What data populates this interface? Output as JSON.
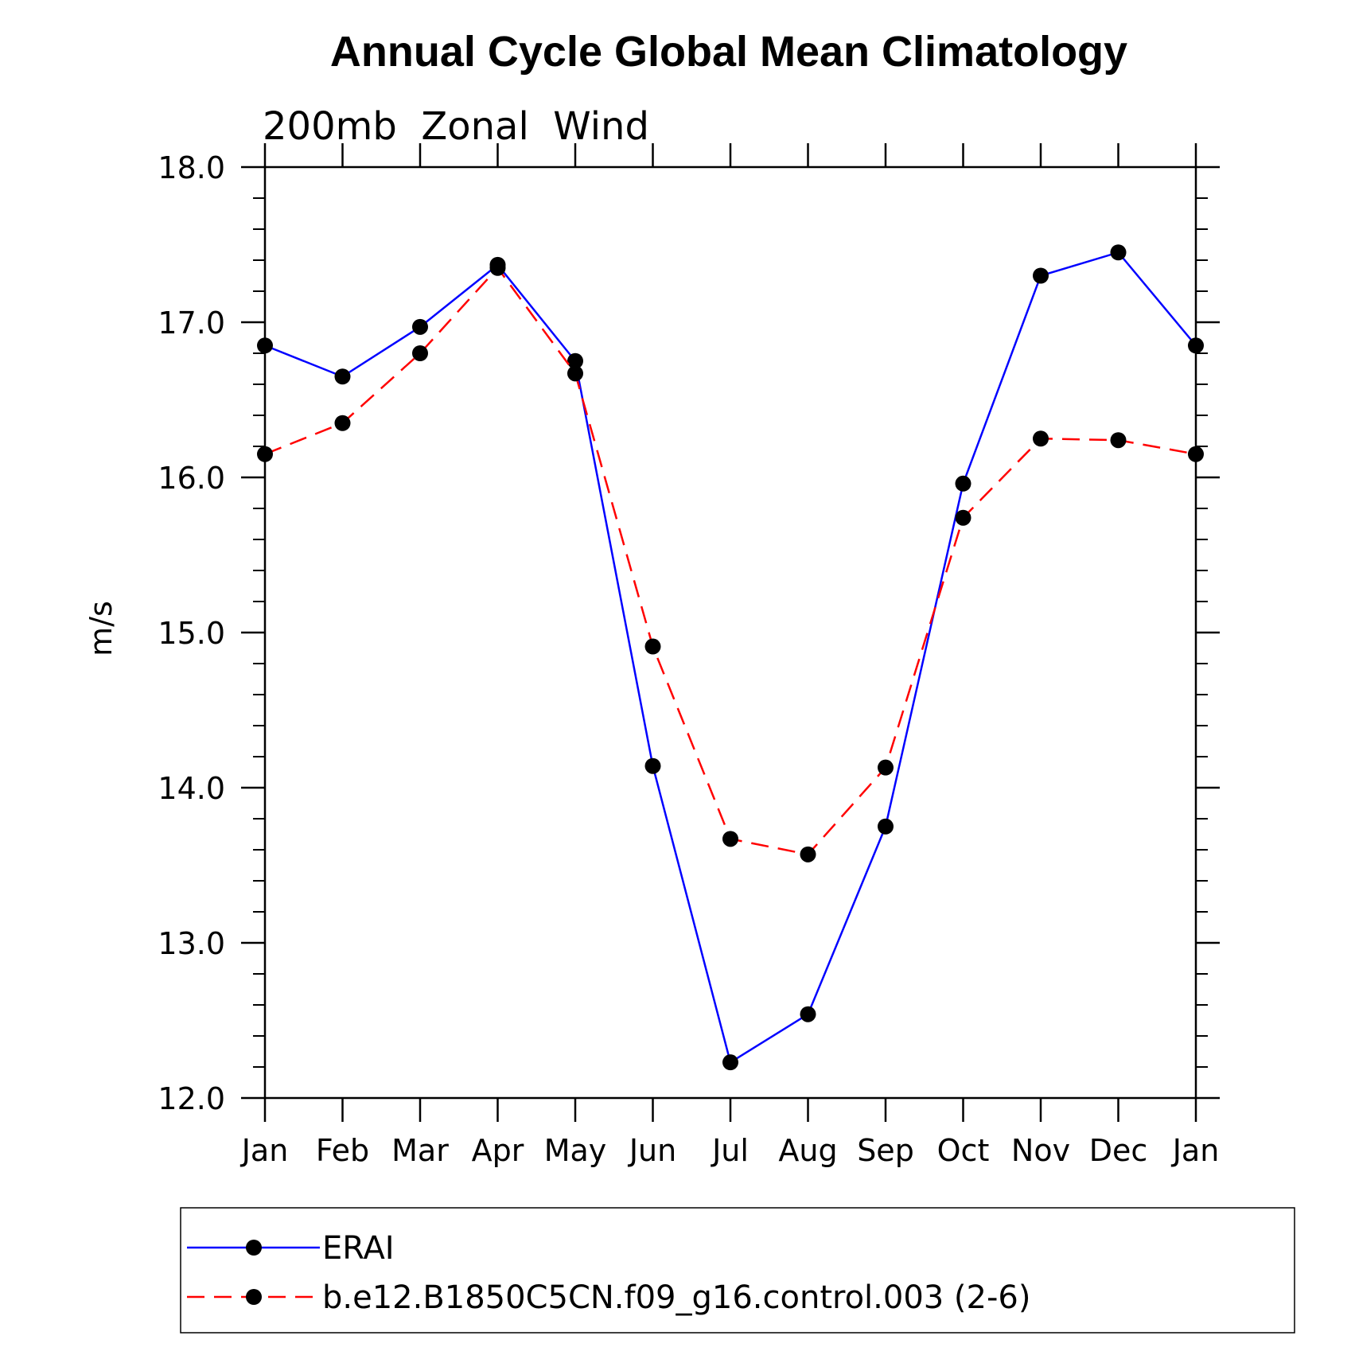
{
  "chart_data": {
    "type": "line",
    "title": "Annual Cycle Global Mean Climatology",
    "subtitle": "200mb  Zonal  Wind",
    "xlabel": "",
    "ylabel": "m/s",
    "categories": [
      "Jan",
      "Feb",
      "Mar",
      "Apr",
      "May",
      "Jun",
      "Jul",
      "Aug",
      "Sep",
      "Oct",
      "Nov",
      "Dec",
      "Jan"
    ],
    "ylim": [
      12.0,
      18.0
    ],
    "yticks": [
      "12.0",
      "13.0",
      "14.0",
      "15.0",
      "16.0",
      "17.0",
      "18.0"
    ],
    "grid": false,
    "legend_position": "bottom",
    "series": [
      {
        "name": "ERAI",
        "color": "#0000ff",
        "dash": "solid",
        "marker": "circle",
        "values": [
          16.85,
          16.65,
          16.97,
          17.37,
          16.75,
          14.14,
          12.23,
          12.54,
          13.75,
          15.96,
          17.3,
          17.45,
          16.85
        ]
      },
      {
        "name": "b.e12.B1850C5CN.f09_g16.control.003 (2-6)",
        "color": "#ff0000",
        "dash": "dashed",
        "marker": "circle",
        "values": [
          16.15,
          16.35,
          16.8,
          17.35,
          16.67,
          14.91,
          13.67,
          13.57,
          14.13,
          15.74,
          16.25,
          16.24,
          16.15
        ]
      }
    ]
  }
}
